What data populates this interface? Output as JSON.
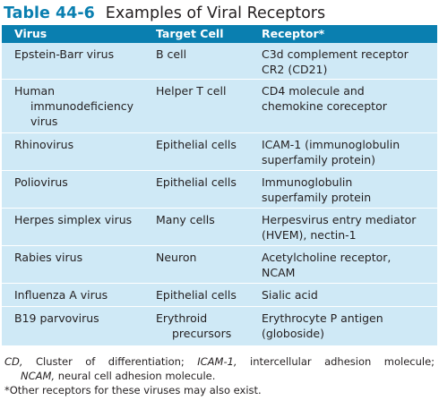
{
  "caption": {
    "number": "Table 44-6",
    "title": "Examples of Viral Receptors"
  },
  "table": {
    "headers": [
      "Virus",
      "Target Cell",
      "Receptor*"
    ],
    "rows": [
      {
        "virus": [
          "Epstein-Barr virus"
        ],
        "target": [
          "B cell"
        ],
        "receptor": [
          "C3d complement receptor",
          "CR2 (CD21)"
        ]
      },
      {
        "virus": [
          "Human",
          "immunodeficiency",
          "virus"
        ],
        "target": [
          "Helper T cell"
        ],
        "receptor": [
          "CD4 molecule and",
          "chemokine coreceptor"
        ]
      },
      {
        "virus": [
          "Rhinovirus"
        ],
        "target": [
          "Epithelial cells"
        ],
        "receptor": [
          "ICAM-1 (immunoglobulin",
          "superfamily protein)"
        ]
      },
      {
        "virus": [
          "Poliovirus"
        ],
        "target": [
          "Epithelial cells"
        ],
        "receptor": [
          "Immunoglobulin",
          "superfamily protein"
        ]
      },
      {
        "virus": [
          "Herpes simplex virus"
        ],
        "target": [
          "Many cells"
        ],
        "receptor": [
          "Herpesvirus entry mediator",
          "(HVEM), nectin-1"
        ]
      },
      {
        "virus": [
          "Rabies virus"
        ],
        "target": [
          "Neuron"
        ],
        "receptor": [
          "Acetylcholine receptor,",
          "NCAM"
        ]
      },
      {
        "virus": [
          "Influenza A virus"
        ],
        "target": [
          "Epithelial cells"
        ],
        "receptor": [
          "Sialic acid"
        ]
      },
      {
        "virus": [
          "B19 parvovirus"
        ],
        "target": [
          "Erythroid",
          "precursors"
        ],
        "receptor": [
          "Erythrocyte P antigen",
          "(globoside)"
        ]
      }
    ]
  },
  "footnote": {
    "cd_abbr": "CD,",
    "cd_text": "Cluster of differentiation;",
    "icam_abbr": "ICAM-1,",
    "icam_text": "intercellular adhesion molecule;",
    "ncam_abbr": "NCAM,",
    "ncam_text": "neural cell adhesion molecule.",
    "other": "*Other receptors for these viruses may also exist."
  }
}
